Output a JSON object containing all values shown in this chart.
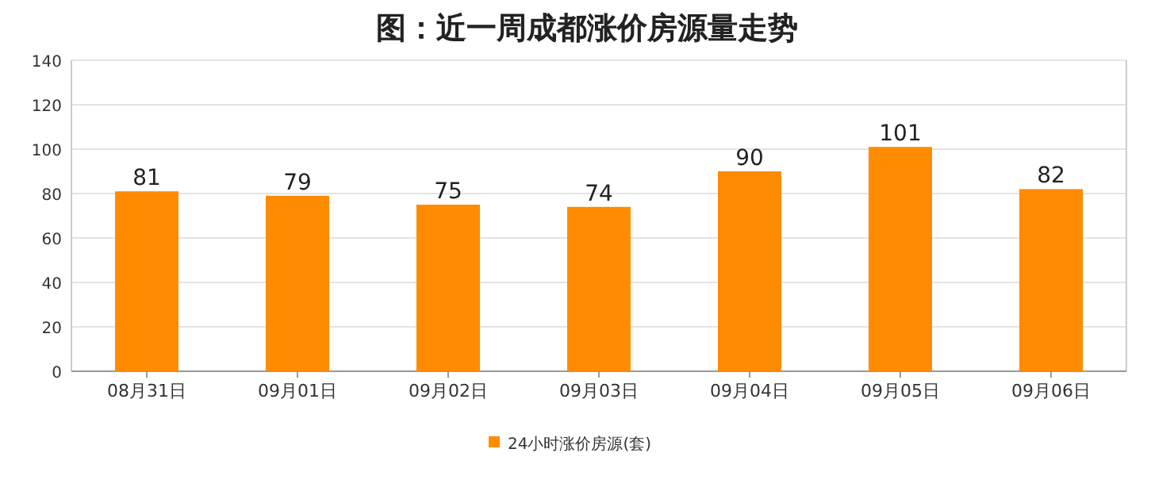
{
  "chart_data": {
    "type": "bar",
    "title": "图：近一周成都涨价房源量走势",
    "categories": [
      "08月31日",
      "09月01日",
      "09月02日",
      "09月03日",
      "09月04日",
      "09月05日",
      "09月06日"
    ],
    "series": [
      {
        "name": "24小时涨价房源(套)",
        "color": "#ff8c00",
        "values": [
          81,
          79,
          75,
          74,
          90,
          101,
          82
        ]
      }
    ],
    "ylim": [
      0,
      140
    ],
    "yticks": [
      0,
      20,
      40,
      60,
      80,
      100,
      120,
      140
    ],
    "grid": "y",
    "legend": "bottom",
    "data_labels": true
  }
}
